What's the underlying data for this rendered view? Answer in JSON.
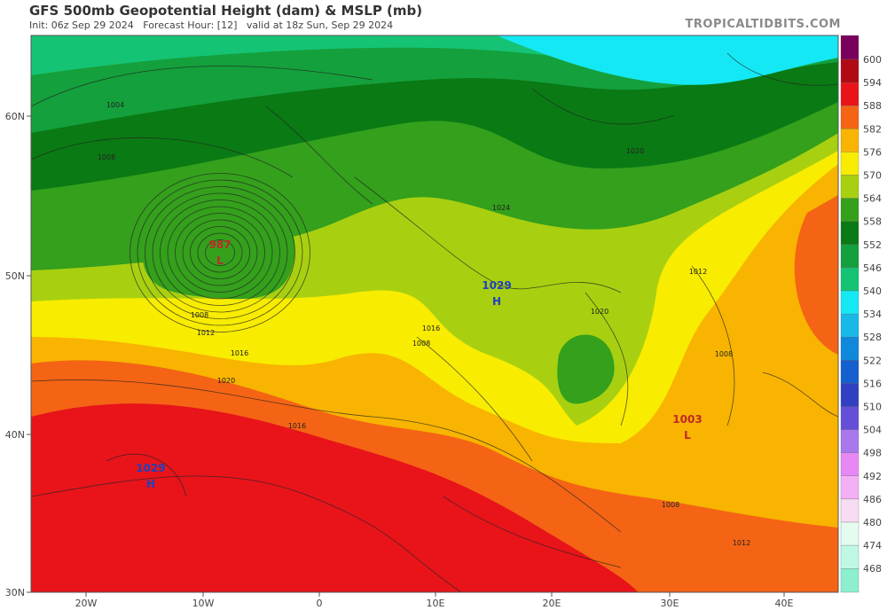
{
  "header": {
    "title": "GFS 500mb Geopotential Height (dam) & MSLP (mb)",
    "subtitle": "Init: 06z Sep 29 2024   Forecast Hour: [12]   valid at 18z Sun, Sep 29 2024",
    "brand": "TROPICALTIDBITS.COM"
  },
  "axes": {
    "latitude_labels": [
      "60N",
      "50N",
      "40N",
      "30N"
    ],
    "longitude_labels": [
      "20W",
      "10W",
      "0",
      "10E",
      "20E",
      "30E",
      "40E"
    ]
  },
  "colorbar": {
    "labels": [
      "600",
      "594",
      "588",
      "582",
      "576",
      "570",
      "564",
      "558",
      "552",
      "546",
      "540",
      "534",
      "528",
      "522",
      "516",
      "510",
      "504",
      "498",
      "492",
      "486",
      "480",
      "474",
      "468"
    ],
    "colors": [
      "#7a005e",
      "#b00a14",
      "#e8141a",
      "#f46414",
      "#f8b400",
      "#f8ec00",
      "#a8d010",
      "#34a01c",
      "#0a7a14",
      "#14a03c",
      "#14c474",
      "#14e8f4",
      "#18b8e8",
      "#1088dc",
      "#1460d0",
      "#3040c0",
      "#6450d8",
      "#a878ec",
      "#e888f4",
      "#f4b0f4",
      "#f8dcf4",
      "#e4fcf0",
      "#c0f8e6",
      "#8cf0d0"
    ]
  },
  "pressure_centers": [
    {
      "type": "L",
      "value": "987",
      "color": "#c0282a"
    },
    {
      "type": "H",
      "value": "1029",
      "color": "#2040c0"
    },
    {
      "type": "L",
      "value": "1003",
      "color": "#c0282a"
    },
    {
      "type": "H",
      "value": "1029",
      "color": "#2040c0"
    }
  ],
  "isobar_labels": [
    "1004",
    "1008",
    "1008",
    "1012",
    "1016",
    "1020",
    "1020",
    "1024",
    "1012",
    "1008",
    "1016",
    "1020",
    "1016",
    "1008",
    "1012",
    "1008"
  ]
}
